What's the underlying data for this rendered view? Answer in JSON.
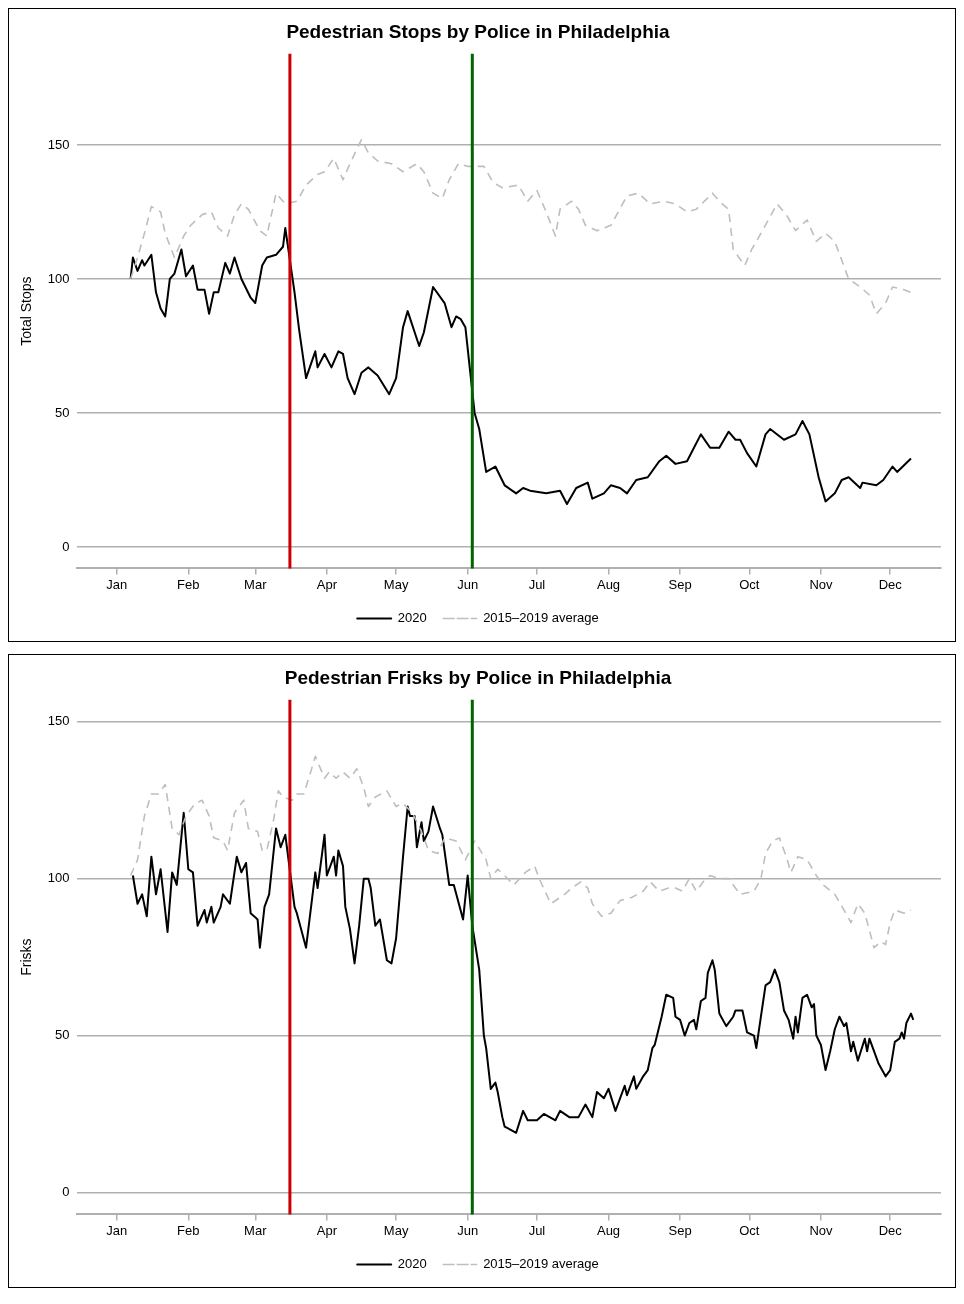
{
  "chart_data": [
    {
      "type": "line",
      "title": "Pedestrian Stops by Police in Philadelphia",
      "ylabel": "Total Stops",
      "xlim": [
        "2019-12-15",
        "2020-12-23"
      ],
      "xticks": [
        {
          "value": "2020-01-01",
          "label": "Jan"
        },
        {
          "value": "2020-02-01",
          "label": "Feb"
        },
        {
          "value": "2020-03-01",
          "label": "Mar"
        },
        {
          "value": "2020-04-01",
          "label": "Apr"
        },
        {
          "value": "2020-05-01",
          "label": "May"
        },
        {
          "value": "2020-06-01",
          "label": "Jun"
        },
        {
          "value": "2020-07-01",
          "label": "Jul"
        },
        {
          "value": "2020-08-01",
          "label": "Aug"
        },
        {
          "value": "2020-09-01",
          "label": "Sep"
        },
        {
          "value": "2020-10-01",
          "label": "Oct"
        },
        {
          "value": "2020-11-01",
          "label": "Nov"
        },
        {
          "value": "2020-12-01",
          "label": "Dec"
        }
      ],
      "ylim": [
        -8,
        184
      ],
      "yticks": [
        0,
        50,
        100,
        150
      ],
      "grid": "y",
      "legend": "bottom",
      "ref_lines": [
        {
          "axis": "x",
          "value": "2020-03-16",
          "color": "#cc0000"
        },
        {
          "axis": "x",
          "value": "2020-06-03",
          "color": "#006400"
        }
      ],
      "series": [
        {
          "name": "2015–2019 average",
          "color": "#bebebe",
          "line_style": "dashed",
          "x": [
            "2020-01-07",
            "2020-01-10",
            "2020-01-13",
            "2020-01-16",
            "2020-01-20",
            "2020-01-22",
            "2020-01-26",
            "2020-01-30",
            "2020-02-02",
            "2020-02-07",
            "2020-02-11",
            "2020-02-14",
            "2020-02-18",
            "2020-02-21",
            "2020-02-24",
            "2020-02-27",
            "2020-03-03",
            "2020-03-06",
            "2020-03-10",
            "2020-03-14",
            "2020-03-19",
            "2020-03-23",
            "2020-03-28",
            "2020-03-31",
            "2020-04-04",
            "2020-04-08",
            "2020-04-11",
            "2020-04-16",
            "2020-04-19",
            "2020-04-23",
            "2020-04-29",
            "2020-05-04",
            "2020-05-10",
            "2020-05-13",
            "2020-05-17",
            "2020-05-21",
            "2020-05-24",
            "2020-05-28",
            "2020-06-01",
            "2020-06-08",
            "2020-06-12",
            "2020-06-16",
            "2020-06-23",
            "2020-06-27",
            "2020-07-01",
            "2020-07-05",
            "2020-07-09",
            "2020-07-11",
            "2020-07-16",
            "2020-07-19",
            "2020-07-22",
            "2020-07-27",
            "2020-08-02",
            "2020-08-09",
            "2020-08-14",
            "2020-08-19",
            "2020-08-25",
            "2020-08-30",
            "2020-09-04",
            "2020-09-08",
            "2020-09-15",
            "2020-09-18",
            "2020-09-22",
            "2020-09-24",
            "2020-09-29",
            "2020-10-02",
            "2020-10-06",
            "2020-10-13",
            "2020-10-17",
            "2020-10-21",
            "2020-10-26",
            "2020-10-30",
            "2020-11-03",
            "2020-11-07",
            "2020-11-13",
            "2020-11-18",
            "2020-11-22",
            "2020-11-25",
            "2020-11-29",
            "2020-12-02",
            "2020-12-07",
            "2020-12-10"
          ],
          "values": [
            100,
            108,
            117,
            127,
            125,
            117,
            108,
            116,
            120,
            124,
            125,
            119,
            116,
            124,
            128,
            126,
            118,
            116,
            132,
            128,
            129,
            135,
            139,
            140,
            145,
            137,
            143,
            152,
            147,
            144,
            143,
            140,
            143,
            140,
            132,
            130,
            137,
            143,
            142,
            142,
            136,
            134,
            135,
            129,
            133,
            125,
            116,
            126,
            129,
            126,
            120,
            118,
            120,
            131,
            132,
            128,
            129,
            128,
            125,
            126,
            132,
            129,
            126,
            111,
            105,
            111,
            117,
            128,
            124,
            118,
            122,
            114,
            117,
            114,
            100,
            97,
            94,
            87,
            91,
            97,
            96,
            95
          ]
        },
        {
          "name": "2020",
          "color": "#000000",
          "line_style": "solid",
          "x": [
            "2020-01-07",
            "2020-01-08",
            "2020-01-10",
            "2020-01-12",
            "2020-01-13",
            "2020-01-16",
            "2020-01-18",
            "2020-01-20",
            "2020-01-22",
            "2020-01-24",
            "2020-01-26",
            "2020-01-29",
            "2020-01-31",
            "2020-02-03",
            "2020-02-05",
            "2020-02-08",
            "2020-02-10",
            "2020-02-12",
            "2020-02-14",
            "2020-02-17",
            "2020-02-19",
            "2020-02-21",
            "2020-02-24",
            "2020-02-28",
            "2020-03-01",
            "2020-03-04",
            "2020-03-06",
            "2020-03-10",
            "2020-03-13",
            "2020-03-14",
            "2020-03-18",
            "2020-03-20",
            "2020-03-23",
            "2020-03-27",
            "2020-03-28",
            "2020-03-31",
            "2020-04-03",
            "2020-04-06",
            "2020-04-08",
            "2020-04-10",
            "2020-04-13",
            "2020-04-16",
            "2020-04-19",
            "2020-04-23",
            "2020-04-28",
            "2020-05-01",
            "2020-05-04",
            "2020-05-06",
            "2020-05-11",
            "2020-05-13",
            "2020-05-17",
            "2020-05-22",
            "2020-05-25",
            "2020-05-27",
            "2020-05-29",
            "2020-05-31",
            "2020-06-04",
            "2020-06-06",
            "2020-06-09",
            "2020-06-13",
            "2020-06-17",
            "2020-06-22",
            "2020-06-25",
            "2020-06-28",
            "2020-07-05",
            "2020-07-11",
            "2020-07-14",
            "2020-07-18",
            "2020-07-23",
            "2020-07-25",
            "2020-07-30",
            "2020-08-02",
            "2020-08-06",
            "2020-08-09",
            "2020-08-13",
            "2020-08-18",
            "2020-08-23",
            "2020-08-26",
            "2020-08-30",
            "2020-09-04",
            "2020-09-07",
            "2020-09-10",
            "2020-09-14",
            "2020-09-18",
            "2020-09-22",
            "2020-09-25",
            "2020-09-27",
            "2020-09-30",
            "2020-10-04",
            "2020-10-08",
            "2020-10-10",
            "2020-10-16",
            "2020-10-21",
            "2020-10-24",
            "2020-10-27",
            "2020-10-31",
            "2020-11-03",
            "2020-11-07",
            "2020-11-10",
            "2020-11-13",
            "2020-11-18",
            "2020-11-19",
            "2020-11-25",
            "2020-11-28",
            "2020-12-02",
            "2020-12-04",
            "2020-12-10"
          ],
          "values": [
            100,
            108,
            103,
            107,
            105,
            109,
            95,
            89,
            86,
            100,
            102,
            111,
            101,
            105,
            96,
            96,
            87,
            95,
            95,
            106,
            102,
            108,
            100,
            93,
            91,
            105,
            108,
            109,
            112,
            119,
            95,
            81,
            63,
            73,
            67,
            72,
            67,
            73,
            72,
            63,
            57,
            65,
            67,
            64,
            57,
            63,
            82,
            88,
            75,
            80,
            97,
            91,
            82,
            86,
            85,
            82,
            50,
            44,
            28,
            30,
            23,
            20,
            22,
            21,
            20,
            21,
            16,
            22,
            24,
            18,
            20,
            23,
            22,
            20,
            25,
            26,
            32,
            34,
            31,
            32,
            37,
            42,
            37,
            37,
            43,
            40,
            40,
            35,
            30,
            42,
            44,
            40,
            42,
            47,
            42,
            26,
            17,
            20,
            25,
            26,
            22,
            24,
            23,
            25,
            30,
            28,
            33
          ]
        }
      ]
    },
    {
      "type": "line",
      "title": "Pedestrian Frisks by Police in Philadelphia",
      "ylabel": "Frisks",
      "xlim": [
        "2019-12-15",
        "2020-12-23"
      ],
      "xticks": [
        {
          "value": "2020-01-01",
          "label": "Jan"
        },
        {
          "value": "2020-02-01",
          "label": "Feb"
        },
        {
          "value": "2020-03-01",
          "label": "Mar"
        },
        {
          "value": "2020-04-01",
          "label": "Apr"
        },
        {
          "value": "2020-05-01",
          "label": "May"
        },
        {
          "value": "2020-06-01",
          "label": "Jun"
        },
        {
          "value": "2020-07-01",
          "label": "Jul"
        },
        {
          "value": "2020-08-01",
          "label": "Aug"
        },
        {
          "value": "2020-09-01",
          "label": "Sep"
        },
        {
          "value": "2020-10-01",
          "label": "Oct"
        },
        {
          "value": "2020-11-01",
          "label": "Nov"
        },
        {
          "value": "2020-12-01",
          "label": "Dec"
        }
      ],
      "ylim": [
        -7,
        157
      ],
      "yticks": [
        0,
        50,
        100,
        150
      ],
      "grid": "y",
      "legend": "bottom",
      "ref_lines": [
        {
          "axis": "x",
          "value": "2020-03-16",
          "color": "#cc0000"
        },
        {
          "axis": "x",
          "value": "2020-06-03",
          "color": "#006400"
        }
      ],
      "series": [
        {
          "name": "2015–2019 average",
          "color": "#bebebe",
          "line_style": "dashed",
          "x": [
            "2020-01-07",
            "2020-01-10",
            "2020-01-13",
            "2020-01-16",
            "2020-01-19",
            "2020-01-22",
            "2020-01-25",
            "2020-01-28",
            "2020-01-31",
            "2020-02-04",
            "2020-02-07",
            "2020-02-10",
            "2020-02-12",
            "2020-02-16",
            "2020-02-18",
            "2020-02-21",
            "2020-02-25",
            "2020-02-27",
            "2020-03-02",
            "2020-03-04",
            "2020-03-06",
            "2020-03-09",
            "2020-03-11",
            "2020-03-13",
            "2020-03-17",
            "2020-03-19",
            "2020-03-22",
            "2020-03-25",
            "2020-03-27",
            "2020-03-31",
            "2020-04-02",
            "2020-04-05",
            "2020-04-08",
            "2020-04-11",
            "2020-04-14",
            "2020-04-17",
            "2020-04-19",
            "2020-04-22",
            "2020-04-27",
            "2020-05-01",
            "2020-05-04",
            "2020-05-08",
            "2020-05-12",
            "2020-05-15",
            "2020-05-19",
            "2020-05-22",
            "2020-05-27",
            "2020-05-31",
            "2020-06-04",
            "2020-06-09",
            "2020-06-11",
            "2020-06-14",
            "2020-06-17",
            "2020-06-21",
            "2020-06-26",
            "2020-06-30",
            "2020-07-02",
            "2020-07-07",
            "2020-07-13",
            "2020-07-16",
            "2020-07-20",
            "2020-07-23",
            "2020-07-25",
            "2020-07-29",
            "2020-08-02",
            "2020-08-06",
            "2020-08-11",
            "2020-08-16",
            "2020-08-19",
            "2020-08-23",
            "2020-08-27",
            "2020-08-30",
            "2020-09-02",
            "2020-09-05",
            "2020-09-08",
            "2020-09-11",
            "2020-09-14",
            "2020-09-18",
            "2020-09-22",
            "2020-09-27",
            "2020-10-03",
            "2020-10-06",
            "2020-10-08",
            "2020-10-11",
            "2020-10-14",
            "2020-10-17",
            "2020-10-19",
            "2020-10-22",
            "2020-10-26",
            "2020-10-30",
            "2020-11-02",
            "2020-11-07",
            "2020-11-11",
            "2020-11-14",
            "2020-11-17",
            "2020-11-20",
            "2020-11-24",
            "2020-11-27",
            "2020-11-29",
            "2020-12-01",
            "2020-12-03",
            "2020-12-07",
            "2020-12-10"
          ],
          "values": [
            101,
            106,
            120,
            127,
            127,
            130,
            116,
            114,
            120,
            124,
            125,
            120,
            113,
            112,
            109,
            121,
            125,
            116,
            115,
            109,
            109,
            119,
            128,
            126,
            125,
            127,
            127,
            134,
            139,
            132,
            134,
            132,
            134,
            132,
            135,
            129,
            123,
            126,
            128,
            123,
            124,
            121,
            115,
            109,
            108,
            113,
            112,
            106,
            112,
            106,
            100,
            103,
            101,
            98,
            102,
            104,
            100,
            92,
            95,
            97,
            99,
            97,
            92,
            88,
            89,
            93,
            94,
            96,
            99,
            96,
            97,
            97,
            96,
            100,
            96,
            99,
            101,
            100,
            100,
            95,
            96,
            100,
            108,
            112,
            113,
            107,
            102,
            107,
            106,
            101,
            98,
            95,
            90,
            86,
            92,
            89,
            78,
            80,
            79,
            86,
            90,
            89,
            90
          ]
        },
        {
          "name": "2020",
          "color": "#000000",
          "line_style": "solid",
          "x": [
            "2020-01-08",
            "2020-01-10",
            "2020-01-12",
            "2020-01-14",
            "2020-01-16",
            "2020-01-18",
            "2020-01-20",
            "2020-01-23",
            "2020-01-25",
            "2020-01-27",
            "2020-01-30",
            "2020-02-01",
            "2020-02-03",
            "2020-02-05",
            "2020-02-08",
            "2020-02-09",
            "2020-02-11",
            "2020-02-12",
            "2020-02-15",
            "2020-02-16",
            "2020-02-19",
            "2020-02-22",
            "2020-02-24",
            "2020-02-26",
            "2020-02-28",
            "2020-03-02",
            "2020-03-03",
            "2020-03-05",
            "2020-03-07",
            "2020-03-10",
            "2020-03-12",
            "2020-03-14",
            "2020-03-18",
            "2020-03-19",
            "2020-03-23",
            "2020-03-27",
            "2020-03-28",
            "2020-03-31",
            "2020-04-01",
            "2020-04-04",
            "2020-04-05",
            "2020-04-06",
            "2020-04-08",
            "2020-04-09",
            "2020-04-11",
            "2020-04-13",
            "2020-04-15",
            "2020-04-17",
            "2020-04-19",
            "2020-04-20",
            "2020-04-22",
            "2020-04-24",
            "2020-04-27",
            "2020-04-29",
            "2020-05-01",
            "2020-05-04",
            "2020-05-06",
            "2020-05-07",
            "2020-05-09",
            "2020-05-10",
            "2020-05-12",
            "2020-05-13",
            "2020-05-15",
            "2020-05-17",
            "2020-05-20",
            "2020-05-21",
            "2020-05-24",
            "2020-05-26",
            "2020-05-30",
            "2020-06-01",
            "2020-06-03",
            "2020-06-06",
            "2020-06-08",
            "2020-06-09",
            "2020-06-11",
            "2020-06-13",
            "2020-06-14",
            "2020-06-16",
            "2020-06-17",
            "2020-06-22",
            "2020-06-25",
            "2020-06-27",
            "2020-07-01",
            "2020-07-04",
            "2020-07-09",
            "2020-07-11",
            "2020-07-15",
            "2020-07-19",
            "2020-07-22",
            "2020-07-25",
            "2020-07-27",
            "2020-07-30",
            "2020-08-01",
            "2020-08-04",
            "2020-08-08",
            "2020-08-09",
            "2020-08-12",
            "2020-08-13",
            "2020-08-16",
            "2020-08-18",
            "2020-08-20",
            "2020-08-21",
            "2020-08-24",
            "2020-08-26",
            "2020-08-29",
            "2020-08-30",
            "2020-09-01",
            "2020-09-03",
            "2020-09-05",
            "2020-09-07",
            "2020-09-08",
            "2020-09-10",
            "2020-09-12",
            "2020-09-13",
            "2020-09-15",
            "2020-09-16",
            "2020-09-18",
            "2020-09-21",
            "2020-09-24",
            "2020-09-25",
            "2020-09-28",
            "2020-09-30",
            "2020-10-03",
            "2020-10-04",
            "2020-10-06",
            "2020-10-08",
            "2020-10-10",
            "2020-10-12",
            "2020-10-14",
            "2020-10-16",
            "2020-10-18",
            "2020-10-20",
            "2020-10-21",
            "2020-10-22",
            "2020-10-24",
            "2020-10-26",
            "2020-10-28",
            "2020-10-29",
            "2020-10-30",
            "2020-11-01",
            "2020-11-03",
            "2020-11-05",
            "2020-11-07",
            "2020-11-09",
            "2020-11-11",
            "2020-11-12",
            "2020-11-14",
            "2020-11-15",
            "2020-11-17",
            "2020-11-20",
            "2020-11-21",
            "2020-11-22",
            "2020-11-26",
            "2020-11-29",
            "2020-12-01",
            "2020-12-03",
            "2020-12-05",
            "2020-12-06",
            "2020-12-07",
            "2020-12-08",
            "2020-12-10",
            "2020-12-11"
          ],
          "values": [
            101,
            92,
            95,
            88,
            107,
            95,
            103,
            83,
            102,
            98,
            121,
            103,
            102,
            85,
            90,
            86,
            91,
            86,
            91,
            95,
            92,
            107,
            102,
            105,
            89,
            87,
            78,
            91,
            95,
            116,
            110,
            114,
            91,
            89,
            78,
            102,
            97,
            114,
            101,
            107,
            101,
            109,
            104,
            91,
            84,
            73,
            85,
            100,
            100,
            97,
            85,
            87,
            74,
            73,
            81,
            107,
            123,
            120,
            120,
            110,
            118,
            112,
            115,
            123,
            116,
            114,
            98,
            98,
            87,
            101,
            85,
            71,
            50,
            46,
            33,
            35,
            32,
            24,
            21,
            19,
            26,
            23,
            23,
            25,
            23,
            26,
            24,
            24,
            28,
            24,
            32,
            30,
            33,
            26,
            34,
            31,
            37,
            33,
            37,
            39,
            46,
            47,
            56,
            63,
            62,
            56,
            55,
            50,
            54,
            55,
            52,
            61,
            62,
            70,
            74,
            71,
            57,
            53,
            56,
            58,
            58,
            51,
            50,
            46,
            56,
            66,
            67,
            71,
            67,
            58,
            55,
            49,
            56,
            51,
            62,
            63,
            59,
            60,
            50,
            47,
            39,
            45,
            52,
            56,
            53,
            54,
            45,
            48,
            42,
            49,
            45,
            49,
            41,
            37,
            39,
            48,
            49,
            51,
            49,
            54,
            57,
            55
          ]
        }
      ]
    }
  ]
}
